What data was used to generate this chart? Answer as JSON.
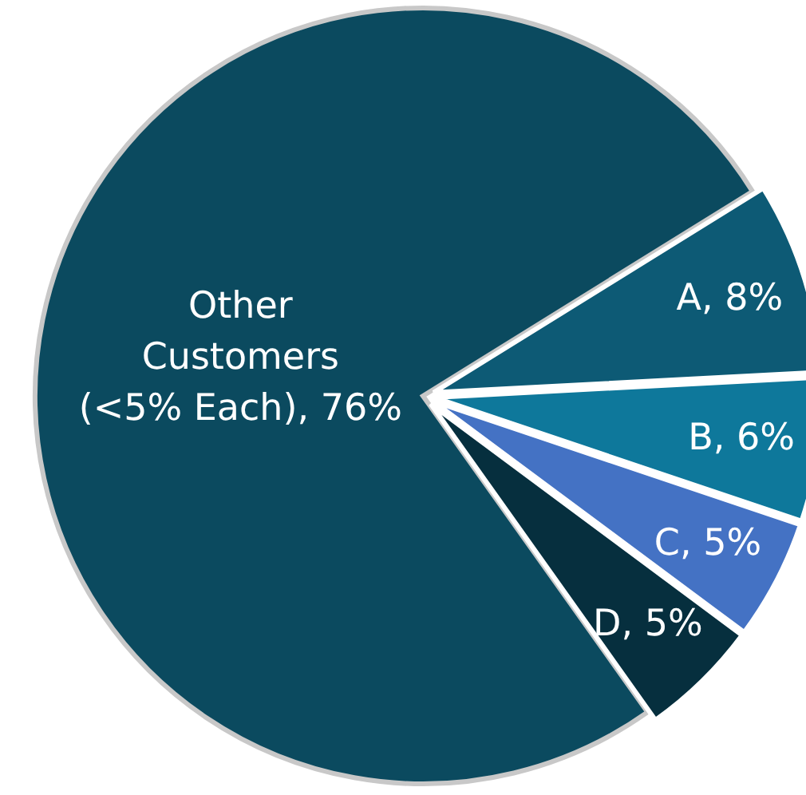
{
  "chart_data": {
    "type": "pie",
    "categories": [
      "Other Customers (<5% Each)",
      "A",
      "B",
      "C",
      "D"
    ],
    "values": [
      76,
      8,
      6,
      5,
      5
    ],
    "value_labels": [
      "76%",
      "8%",
      "6%",
      "5%",
      "5%"
    ],
    "colors": [
      "#0b4a5f",
      "#0d5a75",
      "#0e789b",
      "#4472c4",
      "#062f3e"
    ]
  }
}
